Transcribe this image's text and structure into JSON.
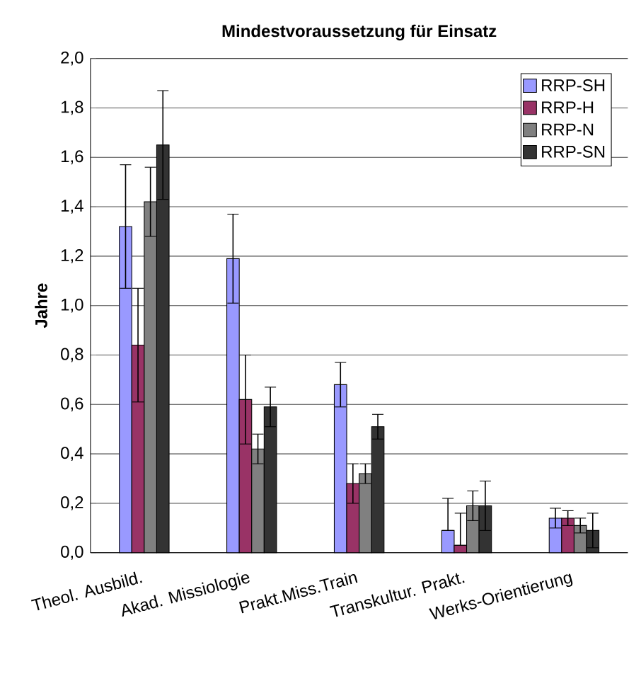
{
  "chart_data": {
    "type": "bar",
    "title": "Mindestvoraussetzung für Einsatz",
    "ylabel": "Jahre",
    "categories": [
      "Theol. Ausbild.",
      "Akad. Missiologie",
      "Prakt.Miss.Train",
      "Transkultur. Prakt.",
      "Werks-Orientierung"
    ],
    "series": [
      {
        "name": "RRP-SH",
        "color": "#9999ff",
        "values": [
          1.32,
          1.19,
          0.68,
          0.09,
          0.14
        ],
        "errors": [
          0.25,
          0.18,
          0.09,
          [
            0.09,
            0.22
          ],
          0.04
        ]
      },
      {
        "name": "RRP-H",
        "color": "#993366",
        "values": [
          0.84,
          0.62,
          0.28,
          0.03,
          0.14
        ],
        "errors": [
          0.23,
          0.18,
          0.08,
          [
            0.03,
            0.16
          ],
          0.03
        ]
      },
      {
        "name": "RRP-N",
        "color": "#808080",
        "values": [
          1.42,
          0.42,
          0.32,
          0.19,
          0.11
        ],
        "errors": [
          0.14,
          0.06,
          0.04,
          0.06,
          0.03
        ]
      },
      {
        "name": "RRP-SN",
        "color": "#333333",
        "values": [
          1.65,
          0.59,
          0.51,
          0.19,
          0.09
        ],
        "errors": [
          0.22,
          0.08,
          0.05,
          0.1,
          0.07
        ]
      }
    ],
    "ylim": [
      0,
      2.0
    ],
    "yticks": [
      {
        "value": 0,
        "label": "0,0"
      },
      {
        "value": 0.2,
        "label": "0,2"
      },
      {
        "value": 0.4,
        "label": "0,4"
      },
      {
        "value": 0.6,
        "label": "0,6"
      },
      {
        "value": 0.8,
        "label": "0,8"
      },
      {
        "value": 1.0,
        "label": "1,0"
      },
      {
        "value": 1.2,
        "label": "1,2"
      },
      {
        "value": 1.4,
        "label": "1,4"
      },
      {
        "value": 1.6,
        "label": "1,6"
      },
      {
        "value": 1.8,
        "label": "1,8"
      },
      {
        "value": 2.0,
        "label": "2,0"
      }
    ],
    "grid": "y",
    "legend": "top right"
  }
}
